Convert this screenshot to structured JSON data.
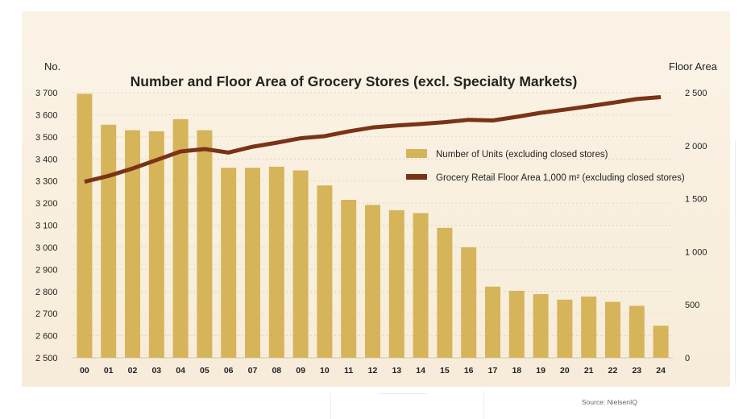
{
  "source": "Source: NielsenIQ",
  "colors": {
    "bar": "#d6b45a",
    "line": "#7a3317",
    "background": "#f8efdf",
    "grid": "#d8c9ae",
    "text": "#222222"
  },
  "chart_data": {
    "type": "bar+line",
    "title": "Number and Floor Area of Grocery Stores (excl. Specialty Markets)",
    "left_axis_label": "No.",
    "right_axis_label": "Floor Area",
    "categories": [
      "00",
      "01",
      "02",
      "03",
      "04",
      "05",
      "06",
      "07",
      "08",
      "09",
      "10",
      "11",
      "12",
      "13",
      "14",
      "15",
      "16",
      "17",
      "18",
      "19",
      "20",
      "21",
      "22",
      "23",
      "24"
    ],
    "left_ylim": [
      2500,
      3700
    ],
    "left_ticks": [
      "2 500",
      "2 600",
      "2 700",
      "2 800",
      "2 900",
      "3 000",
      "3 100",
      "3 200",
      "3 300",
      "3 400",
      "3 500",
      "3 600",
      "3 700"
    ],
    "right_ylim": [
      0,
      2500
    ],
    "right_ticks": [
      "0",
      "500",
      "1 000",
      "1 500",
      "2 000",
      "2 500"
    ],
    "series": [
      {
        "name": "Number of Units (excluding closed stores)",
        "type": "bar",
        "axis": "left",
        "values": [
          3695,
          3555,
          3530,
          3525,
          3580,
          3530,
          3360,
          3360,
          3365,
          3348,
          3280,
          3215,
          3192,
          3168,
          3155,
          3088,
          3000,
          2822,
          2803,
          2788,
          2763,
          2777,
          2753,
          2735,
          2645
        ]
      },
      {
        "name": "Grocery Retail Floor Area 1,000 m² (excluding closed stores)",
        "type": "line",
        "axis": "right",
        "values": [
          1660,
          1715,
          1785,
          1865,
          1945,
          1968,
          1935,
          1990,
          2028,
          2070,
          2090,
          2135,
          2172,
          2190,
          2205,
          2222,
          2244,
          2238,
          2272,
          2310,
          2340,
          2372,
          2405,
          2440,
          2458
        ]
      }
    ],
    "legend_position": "right-middle"
  }
}
